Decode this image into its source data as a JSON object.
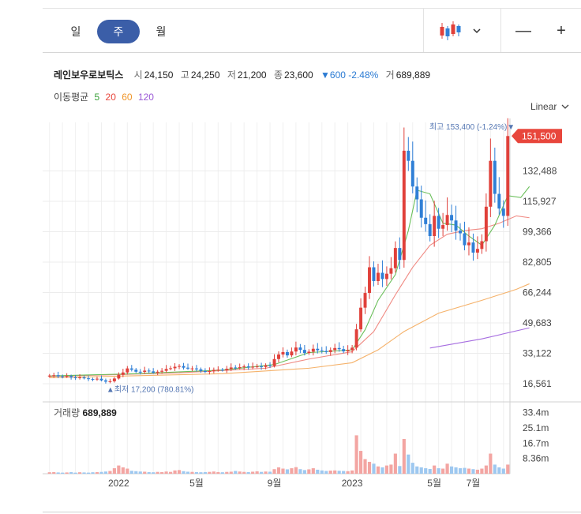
{
  "toolbar": {
    "periods": [
      "일",
      "주",
      "월"
    ],
    "active_period": "주",
    "zoom_out": "—",
    "zoom_in": "+"
  },
  "stock": {
    "name": "레인보우로보틱스",
    "open_label": "시",
    "open": "24,150",
    "high_label": "고",
    "high": "24,250",
    "low_label": "저",
    "low": "21,200",
    "close_label": "종",
    "close": "23,600",
    "change": "▼600 -2.48%",
    "volume_label": "거",
    "volume": "689,889"
  },
  "moving_average": {
    "label": "이동평균",
    "periods": [
      {
        "label": "5",
        "color": "#3aa13a"
      },
      {
        "label": "20",
        "color": "#e8463c"
      },
      {
        "label": "60",
        "color": "#f0962b"
      },
      {
        "label": "120",
        "color": "#9b59d6"
      }
    ]
  },
  "scale_mode": "Linear",
  "colors": {
    "up": "#e0403a",
    "down": "#2f7fd6",
    "ma5": "#6abf5a",
    "ma20": "#f08a83",
    "ma60": "#f5b26b",
    "ma120": "#a66de0",
    "vol_up": "#f3a5a2",
    "vol_down": "#9ec8f0"
  },
  "chart_data": {
    "type": "candlestick",
    "price_ticks": [
      "132,488",
      "115,927",
      "99,366",
      "82,805",
      "66,244",
      "49,683",
      "33,122",
      "16,561"
    ],
    "price_tick_values": [
      132488,
      115927,
      99366,
      82805,
      66244,
      49683,
      33122,
      16561
    ],
    "ylim": [
      10000,
      168000
    ],
    "last_price": "151,500",
    "last_price_value": 151500,
    "max_label": "최고 153,400 (-1.24%)▼",
    "max_value": 153400,
    "max_index": 108,
    "min_label": "▲최저 17,200 (780.81%)",
    "min_value": 17200,
    "min_index": 13,
    "x_ticks": [
      "2022",
      "5월",
      "9월",
      "2023",
      "5월",
      "7월"
    ],
    "x_tick_index": [
      16,
      34,
      52,
      70,
      89,
      98
    ],
    "closes": [
      21000,
      21200,
      20600,
      20300,
      20700,
      20000,
      19600,
      20000,
      19500,
      19100,
      18900,
      19300,
      18400,
      17700,
      17900,
      19400,
      21400,
      22700,
      24900,
      24200,
      23100,
      23000,
      23700,
      23300,
      22600,
      23100,
      23600,
      24600,
      25000,
      25800,
      26200,
      25300,
      24800,
      24900,
      24400,
      23500,
      23000,
      23400,
      24100,
      24200,
      23900,
      24700,
      25400,
      25100,
      25600,
      26000,
      25400,
      25800,
      26000,
      25700,
      26600,
      26200,
      30000,
      32500,
      33800,
      32000,
      34100,
      36300,
      35000,
      33300,
      34000,
      35600,
      34800,
      34400,
      33800,
      34900,
      36000,
      35400,
      34200,
      34900,
      36200,
      46200,
      58000,
      66000,
      80000,
      72500,
      77000,
      73600,
      76500,
      79500,
      90500,
      84000,
      143500,
      138000,
      124000,
      117000,
      107000,
      103500,
      97000,
      108000,
      101000,
      103000,
      108500,
      105500,
      100000,
      98500,
      92000,
      93500,
      88000,
      90000,
      94200,
      113000,
      138000,
      120000,
      112000,
      108000,
      151500
    ],
    "opens": [
      20500,
      21000,
      21200,
      20500,
      20300,
      20700,
      20000,
      19600,
      20000,
      19500,
      19100,
      18900,
      19300,
      18400,
      17700,
      17900,
      19400,
      21400,
      22700,
      24900,
      24200,
      23100,
      23000,
      23700,
      23300,
      22600,
      23100,
      23600,
      24600,
      25000,
      25800,
      26200,
      25300,
      24800,
      24900,
      24400,
      23500,
      23000,
      23400,
      24100,
      24200,
      23900,
      24700,
      25400,
      25100,
      25600,
      26000,
      25400,
      25800,
      26000,
      25700,
      26600,
      26200,
      30000,
      32500,
      33800,
      32000,
      34100,
      36300,
      35000,
      33300,
      34000,
      35600,
      34800,
      34400,
      33800,
      34900,
      36000,
      35400,
      34200,
      34900,
      36200,
      46200,
      58000,
      66000,
      80000,
      72500,
      77000,
      73600,
      76500,
      79500,
      90500,
      84000,
      143500,
      138000,
      124000,
      117000,
      107000,
      103500,
      97000,
      108000,
      101000,
      103000,
      108500,
      105500,
      100000,
      98500,
      92000,
      93500,
      88000,
      90000,
      94200,
      113000,
      138000,
      120000,
      112000,
      108000
    ],
    "ma_lines": {
      "ma5": [
        [
          0,
          20800
        ],
        [
          20,
          22000
        ],
        [
          40,
          24000
        ],
        [
          52,
          27000
        ],
        [
          60,
          33500
        ],
        [
          70,
          35000
        ],
        [
          73,
          46000
        ],
        [
          76,
          62000
        ],
        [
          80,
          76000
        ],
        [
          83,
          100000
        ],
        [
          85,
          122000
        ],
        [
          88,
          120000
        ],
        [
          91,
          104000
        ],
        [
          94,
          103000
        ],
        [
          97,
          97000
        ],
        [
          100,
          92000
        ],
        [
          103,
          103000
        ],
        [
          106,
          119000
        ],
        [
          109,
          118000
        ],
        [
          111,
          124000
        ]
      ],
      "ma20": [
        [
          0,
          20500
        ],
        [
          30,
          22500
        ],
        [
          50,
          25000
        ],
        [
          60,
          30000
        ],
        [
          70,
          34000
        ],
        [
          75,
          45000
        ],
        [
          80,
          65000
        ],
        [
          84,
          80000
        ],
        [
          88,
          92000
        ],
        [
          92,
          98000
        ],
        [
          96,
          100000
        ],
        [
          100,
          101000
        ],
        [
          104,
          104000
        ],
        [
          108,
          108000
        ],
        [
          111,
          107000
        ]
      ],
      "ma60": [
        [
          0,
          19800
        ],
        [
          40,
          22000
        ],
        [
          60,
          25000
        ],
        [
          70,
          28000
        ],
        [
          76,
          35000
        ],
        [
          82,
          45000
        ],
        [
          90,
          55000
        ],
        [
          100,
          62000
        ],
        [
          108,
          68000
        ],
        [
          111,
          71000
        ]
      ],
      "ma120": [
        [
          88,
          36000
        ],
        [
          100,
          41000
        ],
        [
          111,
          47000
        ]
      ]
    },
    "volume": {
      "label": "거래량",
      "value": "689,889",
      "ticks": [
        "33.4m",
        "25.1m",
        "16.7m",
        "8.36m"
      ],
      "tick_values": [
        33.4,
        25.1,
        16.7,
        8.36
      ],
      "ylim": [
        0,
        38
      ],
      "values": [
        0.8,
        0.9,
        0.7,
        0.6,
        0.7,
        0.9,
        0.6,
        0.8,
        0.7,
        0.6,
        0.8,
        0.9,
        1.0,
        1.2,
        1.5,
        3.0,
        4.5,
        3.5,
        2.8,
        1.6,
        1.4,
        1.2,
        1.1,
        0.9,
        0.8,
        1.0,
        0.9,
        1.2,
        1.0,
        1.8,
        2.0,
        1.4,
        1.1,
        1.0,
        0.9,
        0.8,
        0.9,
        1.0,
        1.2,
        0.9,
        0.8,
        1.0,
        1.1,
        1.5,
        1.2,
        1.0,
        0.9,
        1.1,
        1.3,
        1.0,
        1.2,
        1.1,
        2.5,
        3.5,
        2.8,
        2.4,
        3.0,
        3.6,
        2.5,
        2.0,
        2.4,
        3.0,
        2.2,
        1.8,
        1.5,
        1.7,
        1.8,
        1.6,
        1.5,
        1.4,
        1.8,
        21.0,
        12.5,
        8.0,
        6.5,
        5.5,
        4.0,
        3.5,
        4.5,
        5.0,
        11.0,
        4.2,
        19.0,
        10.5,
        6.0,
        4.0,
        3.5,
        3.0,
        2.6,
        4.5,
        3.0,
        2.8,
        5.5,
        4.0,
        3.5,
        3.0,
        3.2,
        2.8,
        2.5,
        2.2,
        2.8,
        4.5,
        11.0,
        5.0,
        3.5,
        2.8,
        5.0
      ]
    }
  }
}
